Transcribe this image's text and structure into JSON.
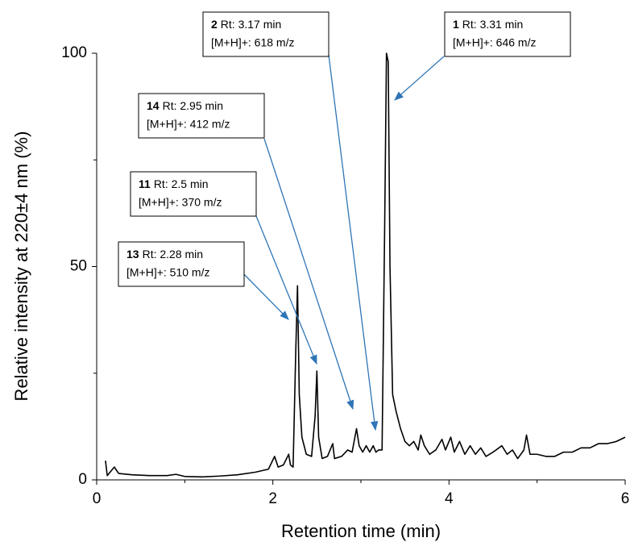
{
  "chart_data": {
    "type": "line",
    "x_label": "Retention time (min)",
    "y_label": "Relative intensity at 220±4 nm (%)",
    "xlim": [
      0,
      6
    ],
    "xticks": [
      0,
      2,
      4,
      6
    ],
    "x_minor_ticks": [
      1,
      3,
      5
    ],
    "ylim": [
      0,
      100
    ],
    "yticks": [
      0,
      50,
      100
    ],
    "y_minor_ticks": [
      25,
      75
    ],
    "grid": false,
    "series": [
      {
        "color": "#000000",
        "x": [
          0.1,
          0.12,
          0.18,
          0.2,
          0.25,
          0.4,
          0.6,
          0.8,
          0.9,
          1.0,
          1.2,
          1.4,
          1.6,
          1.8,
          1.95,
          2.02,
          2.06,
          2.12,
          2.18,
          2.2,
          2.23,
          2.26,
          2.28,
          2.3,
          2.33,
          2.38,
          2.44,
          2.48,
          2.5,
          2.52,
          2.56,
          2.62,
          2.68,
          2.7,
          2.78,
          2.85,
          2.9,
          2.95,
          2.98,
          3.02,
          3.06,
          3.1,
          3.14,
          3.17,
          3.2,
          3.24,
          3.27,
          3.29,
          3.31,
          3.33,
          3.36,
          3.4,
          3.45,
          3.5,
          3.55,
          3.6,
          3.65,
          3.68,
          3.72,
          3.78,
          3.85,
          3.92,
          3.96,
          4.02,
          4.06,
          4.12,
          4.18,
          4.24,
          4.3,
          4.36,
          4.42,
          4.5,
          4.6,
          4.66,
          4.72,
          4.78,
          4.85,
          4.88,
          4.92,
          5.0,
          5.1,
          5.2,
          5.3,
          5.4,
          5.5,
          5.6,
          5.7,
          5.8,
          5.9,
          6.0
        ],
        "values": [
          4.5,
          1,
          2.5,
          3,
          1.5,
          1.2,
          1,
          1,
          1.3,
          0.8,
          0.7,
          0.9,
          1.2,
          1.8,
          2.5,
          5.5,
          3,
          3.5,
          6,
          3.5,
          3,
          30,
          45.5,
          20,
          10,
          6,
          5.5,
          15,
          25.5,
          10,
          5,
          5.5,
          8.5,
          5,
          5.5,
          7,
          6.5,
          12,
          8,
          6.5,
          8,
          6.5,
          8,
          6.5,
          7,
          7,
          60,
          100,
          98,
          50,
          20,
          16,
          12,
          9,
          8,
          9,
          7,
          10.5,
          8,
          6,
          7,
          9.5,
          7,
          10,
          6.5,
          9,
          6,
          8,
          6,
          7.5,
          5.5,
          6.5,
          8,
          6,
          7,
          5,
          7,
          10.5,
          6,
          6,
          5.5,
          5.5,
          6.5,
          6.5,
          7.5,
          7.5,
          8.5,
          8.5,
          9,
          10
        ]
      }
    ],
    "annotations": [
      {
        "compound": "1",
        "text": "Rt: 3.31 min",
        "mz": "[M+H]+:  646 m/z"
      },
      {
        "compound": "2",
        "text": "Rt: 3.17 min",
        "mz": "[M+H]+:  618 m/z"
      },
      {
        "compound": "14",
        "text": "Rt: 2.95 min",
        "mz": "[M+H]+:  412 m/z"
      },
      {
        "compound": "11",
        "text": "Rt: 2.5 min",
        "mz": "[M+H]+:  370 m/z"
      },
      {
        "compound": "13",
        "text": "Rt: 2.28 min",
        "mz": "[M+H]+:  510 m/z"
      }
    ],
    "annotation_color": "#2e75b6"
  }
}
